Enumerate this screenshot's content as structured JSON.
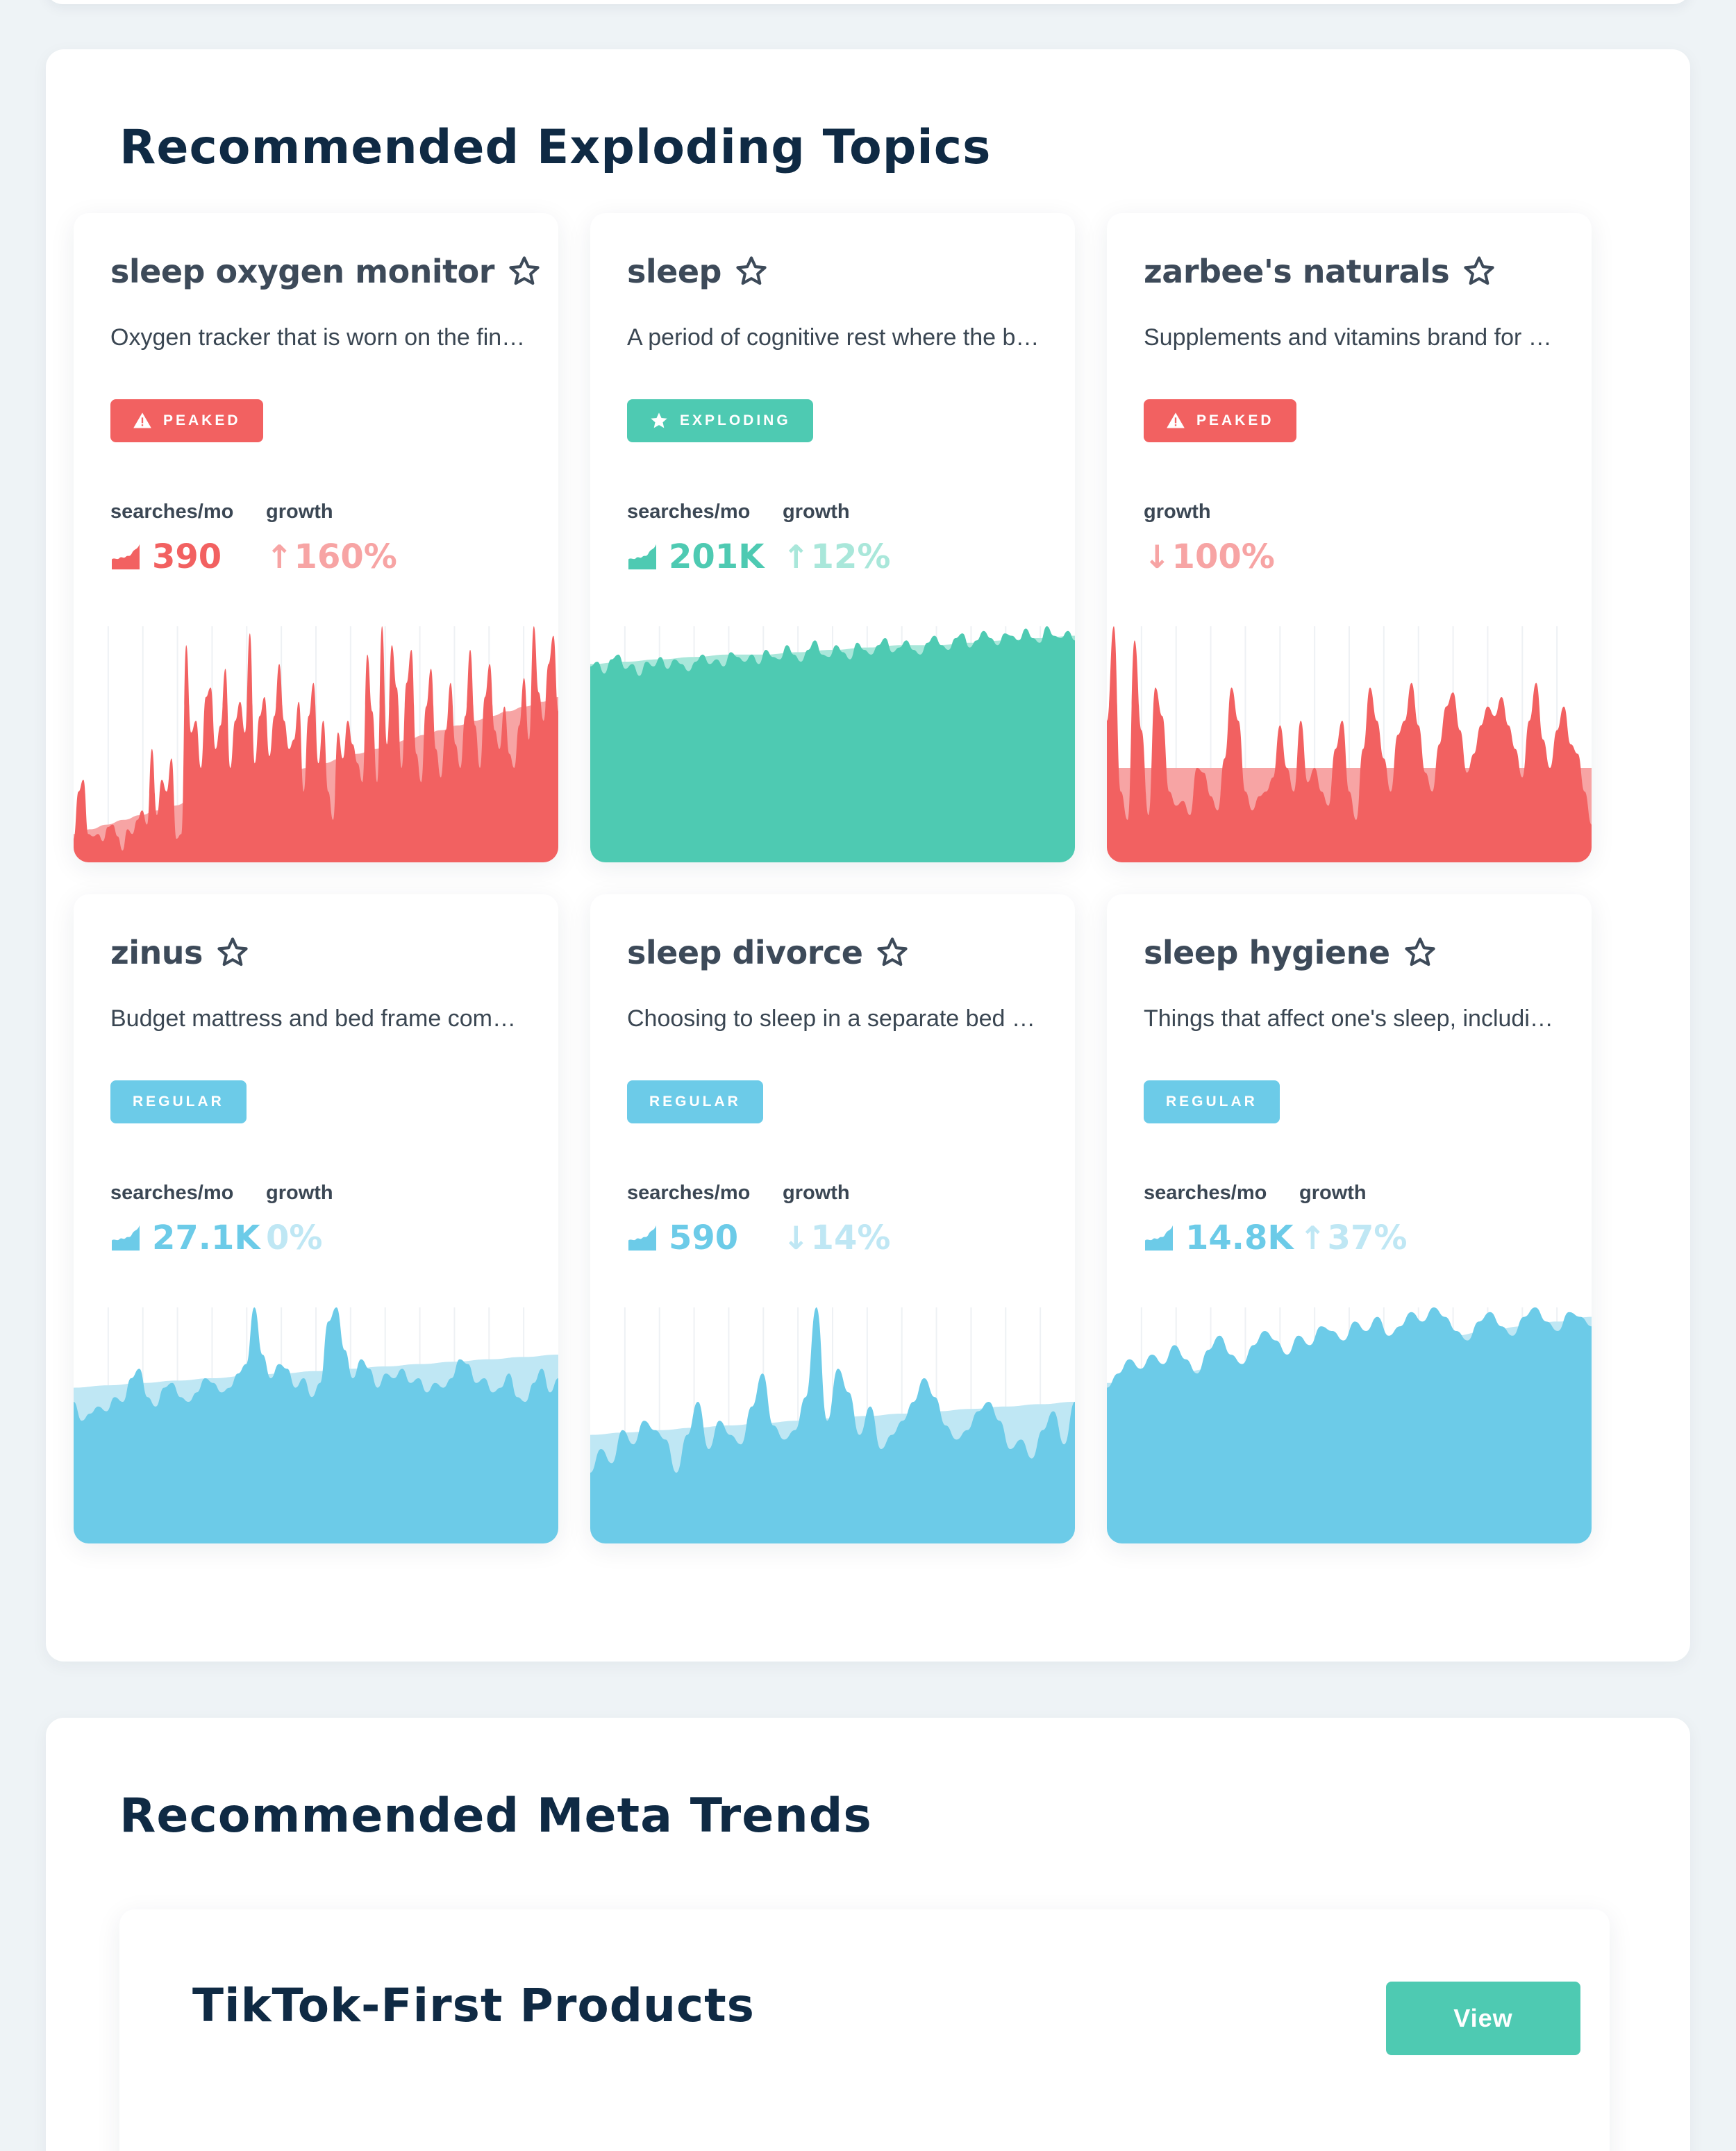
{
  "colors": {
    "peaked": "#f26161",
    "peaked_light": "#f7a4a4",
    "exploding": "#4ecab2",
    "exploding_light": "#a9e7da",
    "regular": "#6ccbe8",
    "regular_light": "#bfe7f4"
  },
  "topics_section": {
    "title": "Recommended Exploding Topics"
  },
  "cards": [
    {
      "title": "sleep oxygen monitor",
      "description": "Oxygen tracker that is worn on the finger during sleep to measure blood oxygen levels",
      "status": "PEAKED",
      "status_type": "peaked",
      "searches_label": "searches/mo",
      "searches": "390",
      "growth_label": "growth",
      "growth": "160%",
      "growth_dir": "up",
      "icons": [
        "star-outline-icon",
        "warning-triangle-icon",
        "volume-chart-icon",
        "arrow-up-icon"
      ]
    },
    {
      "title": "sleep",
      "description": "A period of cognitive rest where the body recovers",
      "status": "EXPLODING",
      "status_type": "exploding",
      "searches_label": "searches/mo",
      "searches": "201K",
      "growth_label": "growth",
      "growth": "12%",
      "growth_dir": "up",
      "icons": [
        "star-outline-icon",
        "star-filled-icon",
        "volume-chart-icon",
        "arrow-up-icon"
      ]
    },
    {
      "title": "zarbee's naturals",
      "description": "Supplements and vitamins brand for children and adults",
      "status": "PEAKED",
      "status_type": "peaked",
      "searches_label": "",
      "searches": "",
      "growth_label": "growth",
      "growth": "100%",
      "growth_dir": "down",
      "icons": [
        "star-outline-icon",
        "warning-triangle-icon",
        "arrow-down-icon"
      ]
    },
    {
      "title": "zinus",
      "description": "Budget mattress and bed frame company",
      "status": "REGULAR",
      "status_type": "regular",
      "searches_label": "searches/mo",
      "searches": "27.1K",
      "growth_label": "growth",
      "growth": "0%",
      "growth_dir": "none",
      "icons": [
        "star-outline-icon",
        "volume-chart-icon"
      ]
    },
    {
      "title": "sleep divorce",
      "description": "Choosing to sleep in a separate bed or bedroom from one's partner",
      "status": "REGULAR",
      "status_type": "regular",
      "searches_label": "searches/mo",
      "searches": "590",
      "growth_label": "growth",
      "growth": "14%",
      "growth_dir": "down",
      "icons": [
        "star-outline-icon",
        "volume-chart-icon",
        "arrow-down-icon"
      ]
    },
    {
      "title": "sleep hygiene",
      "description": "Things that affect one's sleep, including habits and environment",
      "status": "REGULAR",
      "status_type": "regular",
      "searches_label": "searches/mo",
      "searches": "14.8K",
      "growth_label": "growth",
      "growth": "37%",
      "growth_dir": "up",
      "icons": [
        "star-outline-icon",
        "volume-chart-icon",
        "arrow-up-icon"
      ]
    }
  ],
  "meta_section": {
    "title": "Recommended Meta Trends",
    "trend": {
      "title": "TikTok-First Products",
      "button_label": "View"
    }
  },
  "chart_data": [
    {
      "type": "area",
      "series": [
        {
          "values": [
            10,
            30,
            35,
            12,
            11,
            12,
            9,
            15,
            16,
            11,
            5,
            14,
            12,
            18,
            22,
            16,
            48,
            20,
            35,
            30,
            44,
            10,
            12,
            92,
            55,
            60,
            40,
            70,
            74,
            48,
            58,
            82,
            40,
            60,
            68,
            55,
            97,
            42,
            62,
            70,
            45,
            62,
            84,
            60,
            48,
            52,
            68,
            30,
            62,
            76,
            42,
            60,
            30,
            18,
            55,
            44,
            60,
            50,
            42,
            34,
            88,
            64,
            34,
            100,
            50,
            92,
            74,
            40,
            76,
            90,
            46,
            34,
            66,
            82,
            48,
            36,
            56,
            76,
            50,
            40,
            62,
            90,
            58,
            40,
            70,
            84,
            56,
            48,
            66,
            46,
            40,
            58,
            78,
            52,
            100,
            72,
            60,
            84,
            96,
            64
          ]
        },
        {
          "values": [
            12,
            14,
            16,
            18,
            20,
            22,
            24,
            26,
            28,
            30,
            32,
            34,
            36,
            38,
            40,
            42,
            44,
            46,
            48,
            50,
            52,
            54,
            56,
            58,
            60,
            62,
            64,
            66,
            68,
            70
          ]
        }
      ]
    },
    {
      "type": "area",
      "series": [
        {
          "values": [
            83,
            85,
            80,
            86,
            88,
            82,
            84,
            79,
            85,
            83,
            87,
            82,
            86,
            84,
            81,
            85,
            88,
            84,
            86,
            83,
            89,
            87,
            85,
            88,
            84,
            90,
            87,
            86,
            92,
            88,
            85,
            90,
            94,
            88,
            87,
            92,
            89,
            86,
            93,
            90,
            88,
            92,
            95,
            89,
            91,
            94,
            90,
            88,
            93,
            96,
            92,
            90,
            95,
            97,
            91,
            94,
            98,
            95,
            92,
            97,
            96,
            94,
            99,
            95,
            93,
            100,
            96,
            95,
            98,
            94
          ]
        },
        {
          "values": [
            84,
            85,
            86,
            87,
            88,
            88,
            89,
            90,
            91,
            92,
            92,
            93,
            94,
            95,
            96
          ]
        }
      ]
    },
    {
      "type": "area",
      "series": [
        {
          "values": [
            60,
            100,
            30,
            18,
            94,
            56,
            20,
            74,
            62,
            30,
            24,
            26,
            20,
            40,
            38,
            28,
            22,
            44,
            74,
            60,
            30,
            22,
            28,
            30,
            36,
            58,
            40,
            30,
            60,
            34,
            40,
            30,
            24,
            48,
            60,
            30,
            18,
            48,
            74,
            60,
            44,
            30,
            54,
            60,
            76,
            58,
            38,
            30,
            50,
            66,
            72,
            56,
            38,
            46,
            58,
            66,
            62,
            70,
            58,
            48,
            36,
            60,
            76,
            52,
            40,
            56,
            66,
            50,
            46,
            30,
            16
          ]
        },
        {
          "values": [
            40,
            40,
            40,
            40,
            40,
            40,
            40,
            40,
            40,
            40,
            40,
            40,
            40,
            40,
            40
          ]
        }
      ]
    },
    {
      "type": "area",
      "series": [
        {
          "values": [
            60,
            52,
            55,
            58,
            56,
            62,
            60,
            70,
            74,
            62,
            58,
            66,
            68,
            62,
            60,
            64,
            70,
            68,
            64,
            66,
            72,
            76,
            100,
            80,
            70,
            76,
            74,
            66,
            70,
            62,
            68,
            94,
            100,
            82,
            70,
            78,
            74,
            66,
            72,
            70,
            74,
            68,
            70,
            64,
            68,
            66,
            70,
            78,
            76,
            68,
            70,
            64,
            66,
            72,
            62,
            60,
            68,
            74,
            64,
            70
          ]
        },
        {
          "values": [
            66,
            67,
            68,
            69,
            70,
            71,
            72,
            73,
            74,
            75,
            76,
            77,
            78,
            79,
            80
          ]
        }
      ]
    },
    {
      "type": "area",
      "series": [
        {
          "values": [
            30,
            40,
            34,
            48,
            42,
            52,
            48,
            44,
            30,
            46,
            60,
            40,
            52,
            46,
            42,
            58,
            72,
            50,
            44,
            48,
            62,
            100,
            52,
            74,
            64,
            46,
            58,
            40,
            46,
            52,
            60,
            70,
            62,
            50,
            44,
            48,
            56,
            60,
            52,
            40,
            44,
            36,
            48,
            56,
            42,
            60
          ]
        },
        {
          "values": [
            46,
            47,
            48,
            49,
            50,
            51,
            52,
            53,
            54,
            55,
            56,
            57,
            58,
            59,
            60
          ]
        }
      ]
    },
    {
      "type": "area",
      "series": [
        {
          "values": [
            66,
            72,
            78,
            74,
            80,
            76,
            84,
            78,
            72,
            82,
            88,
            80,
            76,
            84,
            90,
            86,
            80,
            88,
            84,
            92,
            90,
            86,
            94,
            90,
            96,
            88,
            92,
            98,
            94,
            100,
            96,
            90,
            86,
            94,
            98,
            92,
            88,
            96,
            100,
            94,
            90,
            98,
            96,
            92
          ]
        },
        {
          "values": [
            68,
            70,
            72,
            74,
            76,
            78,
            80,
            82,
            84,
            86,
            88,
            90,
            92,
            94,
            96
          ]
        }
      ]
    }
  ]
}
